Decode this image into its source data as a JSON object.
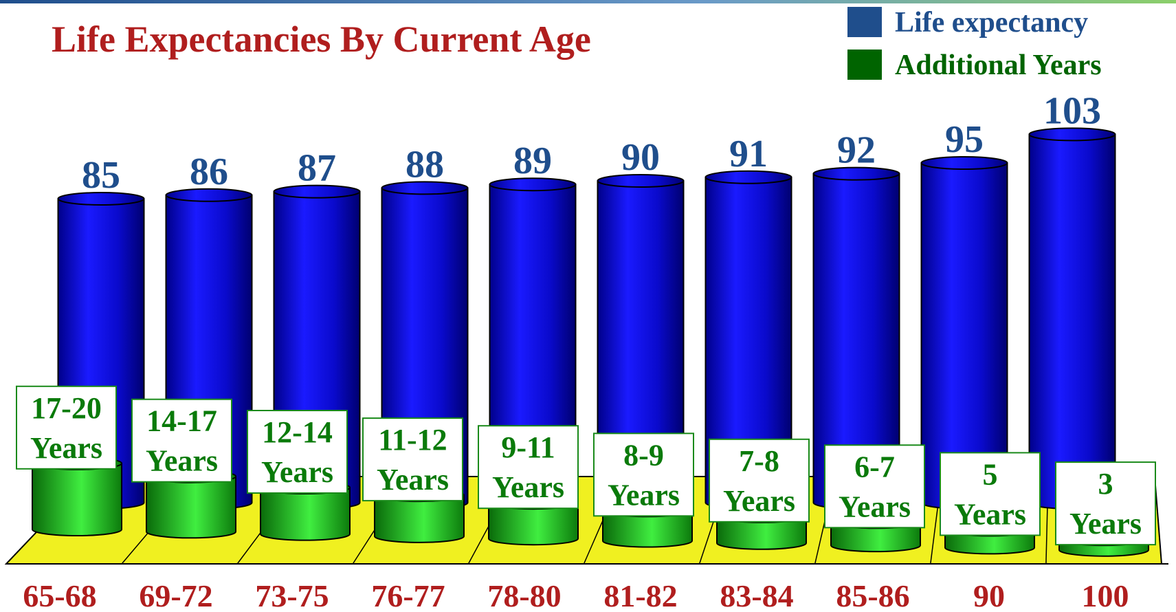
{
  "chart_data": {
    "type": "cylinder3d",
    "title": "Life Expectancies By Current Age",
    "categories": [
      "65-68",
      "69-72",
      "73-75",
      "76-77",
      "78-80",
      "81-82",
      "83-84",
      "85-86",
      "90",
      "100"
    ],
    "series": [
      {
        "name": "Life expectancy",
        "color": "#0a0acc",
        "values": [
          85,
          86,
          87,
          88,
          89,
          90,
          91,
          92,
          95,
          103
        ]
      },
      {
        "name": "Additional Years",
        "color": "#1aa01a",
        "values": [
          18.5,
          15.5,
          13,
          11.5,
          10,
          8.5,
          7.5,
          6.5,
          5,
          3
        ],
        "value_labels": [
          "17-20 Years",
          "14-17 Years",
          "12-14 Years",
          "11-12 Years",
          "9-11 Years",
          "8-9 Years",
          "7-8 Years",
          "6-7 Years",
          "5 Years",
          "3 Years"
        ]
      }
    ],
    "legend": "top-right"
  }
}
